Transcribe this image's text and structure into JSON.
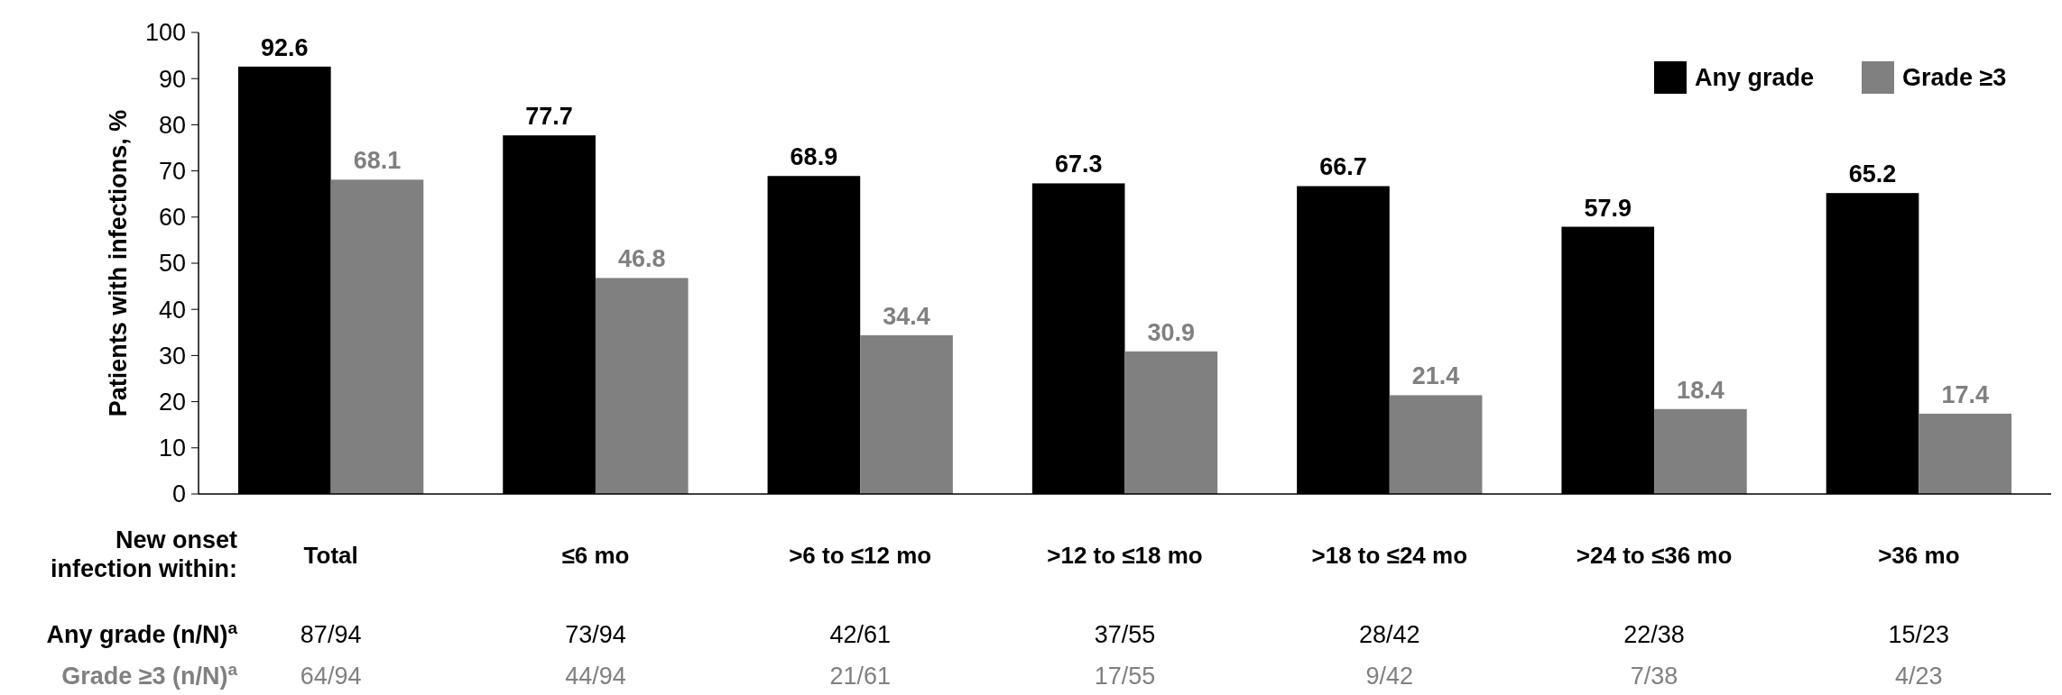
{
  "chart_data": {
    "type": "bar",
    "xlabel": "New onset infection within:",
    "ylabel": "Patients with infections, %",
    "categories": [
      "Total",
      "≤6 mo",
      ">6 to ≤12 mo",
      ">12 to ≤18 mo",
      ">18 to ≤24 mo",
      ">24 to ≤36 mo",
      ">36 mo"
    ],
    "series": [
      {
        "name": "Any grade",
        "color": "#000000",
        "values": [
          92.6,
          77.7,
          68.9,
          67.3,
          66.7,
          57.9,
          65.2
        ]
      },
      {
        "name": "Grade ≥3",
        "color": "#808080",
        "values": [
          68.1,
          46.8,
          34.4,
          30.9,
          21.4,
          18.4,
          17.4
        ]
      }
    ],
    "ylim": [
      0,
      100
    ],
    "yticks": [
      0,
      10,
      20,
      30,
      40,
      50,
      60,
      70,
      80,
      90,
      100
    ],
    "data_labels": true,
    "legend": "top right",
    "annotations": [
      "Any grade (n/N)$^{a}$",
      "87/94",
      "73/94",
      "42/61",
      "37/55",
      "28/42",
      "22/38",
      "15/23",
      "Grade ≥3 (n/N)$^{a}$",
      "64/94",
      "44/94",
      "21/61",
      "17/55",
      "9/42",
      "7/38",
      "4/23"
    ]
  }
}
